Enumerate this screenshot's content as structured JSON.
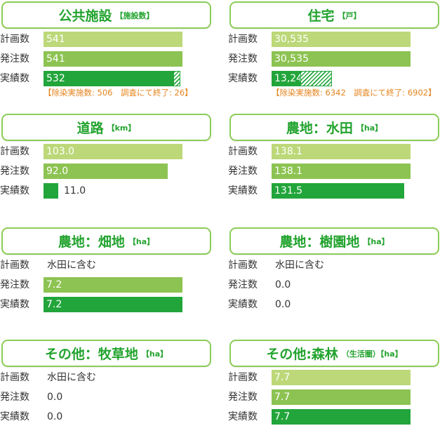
{
  "row_labels": {
    "plan": "計画数",
    "order": "発注数",
    "actual": "実績数"
  },
  "chart_data": [
    {
      "type": "bar",
      "title": "公共施設",
      "unit": "【施設数】",
      "categories": [
        "計画数",
        "発注数",
        "実績数"
      ],
      "values": [
        541,
        541,
        532
      ],
      "labels": [
        "541",
        "541",
        "532"
      ],
      "max": 541,
      "actual_breakdown": {
        "decontaminated": 506,
        "survey_completed": 26
      },
      "note": "【除染実施数: 506　調査にて終了: 26】"
    },
    {
      "type": "bar",
      "title": "住宅",
      "unit": "【戸】",
      "categories": [
        "計画数",
        "発注数",
        "実績数"
      ],
      "values": [
        30535,
        30535,
        13244
      ],
      "labels": [
        "30,535",
        "30,535",
        "13,244"
      ],
      "max": 30535,
      "actual_breakdown": {
        "decontaminated": 6342,
        "survey_completed": 6902
      },
      "note": "【除染実施数: 6342　調査にて終了: 6902】"
    },
    {
      "type": "bar",
      "title": "道路",
      "unit": "【km】",
      "categories": [
        "計画数",
        "発注数",
        "実績数"
      ],
      "values": [
        103.0,
        92.0,
        11.0
      ],
      "labels": [
        "103.0",
        "92.0",
        "11.0"
      ],
      "max": 103.0
    },
    {
      "type": "bar",
      "title": "農地：水田",
      "unit": "【ha】",
      "categories": [
        "計画数",
        "発注数",
        "実績数"
      ],
      "values": [
        138.1,
        138.1,
        131.5
      ],
      "labels": [
        "138.1",
        "138.1",
        "131.5"
      ],
      "max": 138.1
    },
    {
      "type": "bar",
      "title": "農地：畑地",
      "unit": "【ha】",
      "categories": [
        "計画数",
        "発注数",
        "実績数"
      ],
      "values": [
        null,
        7.2,
        7.2
      ],
      "labels": [
        "水田に含む",
        "7.2",
        "7.2"
      ],
      "max": 7.2
    },
    {
      "type": "bar",
      "title": "農地：樹園地",
      "unit": "【ha】",
      "categories": [
        "計画数",
        "発注数",
        "実績数"
      ],
      "values": [
        null,
        0.0,
        0.0
      ],
      "labels": [
        "水田に含む",
        "0.0",
        "0.0"
      ],
      "max": 1
    },
    {
      "type": "bar",
      "title": "その他：牧草地",
      "unit": "【ha】",
      "categories": [
        "計画数",
        "発注数",
        "実績数"
      ],
      "values": [
        null,
        0.0,
        0.0
      ],
      "labels": [
        "水田に含む",
        "0.0",
        "0.0"
      ],
      "max": 1
    },
    {
      "type": "bar",
      "title": "その他:森林",
      "unit": "（生活圏）【ha】",
      "categories": [
        "計画数",
        "発注数",
        "実績数"
      ],
      "values": [
        7.7,
        7.7,
        7.7
      ],
      "labels": [
        "7.7",
        "7.7",
        "7.7"
      ],
      "max": 7.7
    }
  ],
  "colors": {
    "plan": "#bcd879",
    "order": "#8dc352",
    "actual": "#22a53b",
    "title_border": "#8ccc57",
    "title_text": "#22a32e",
    "note_text": "#e5841c"
  }
}
